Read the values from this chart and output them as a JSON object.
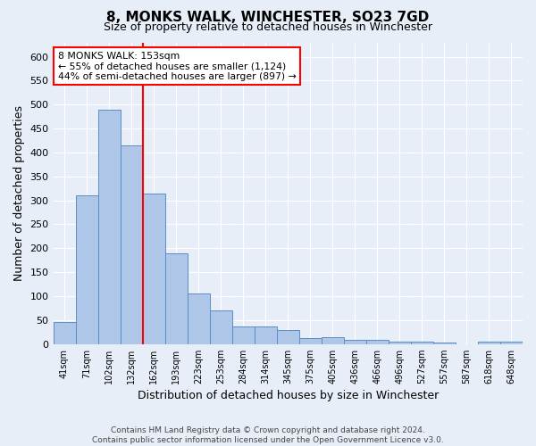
{
  "title": "8, MONKS WALK, WINCHESTER, SO23 7GD",
  "subtitle": "Size of property relative to detached houses in Winchester",
  "xlabel": "Distribution of detached houses by size in Winchester",
  "ylabel": "Number of detached properties",
  "categories": [
    "41sqm",
    "71sqm",
    "102sqm",
    "132sqm",
    "162sqm",
    "193sqm",
    "223sqm",
    "253sqm",
    "284sqm",
    "314sqm",
    "345sqm",
    "375sqm",
    "405sqm",
    "436sqm",
    "466sqm",
    "496sqm",
    "527sqm",
    "557sqm",
    "587sqm",
    "618sqm",
    "648sqm"
  ],
  "values": [
    46,
    310,
    490,
    415,
    315,
    190,
    105,
    70,
    37,
    37,
    29,
    12,
    14,
    9,
    9,
    5,
    5,
    4,
    0,
    5,
    5
  ],
  "bar_color": "#aec6e8",
  "bar_edge_color": "#5b8dc8",
  "vline_x": 3.5,
  "vline_color": "red",
  "annotation_text": "8 MONKS WALK: 153sqm\n← 55% of detached houses are smaller (1,124)\n44% of semi-detached houses are larger (897) →",
  "annotation_box_color": "white",
  "annotation_box_edge": "red",
  "ylim": [
    0,
    630
  ],
  "yticks": [
    0,
    50,
    100,
    150,
    200,
    250,
    300,
    350,
    400,
    450,
    500,
    550,
    600
  ],
  "background_color": "#e8eef8",
  "grid_color": "white",
  "title_fontsize": 11,
  "subtitle_fontsize": 9,
  "footer": "Contains HM Land Registry data © Crown copyright and database right 2024.\nContains public sector information licensed under the Open Government Licence v3.0."
}
